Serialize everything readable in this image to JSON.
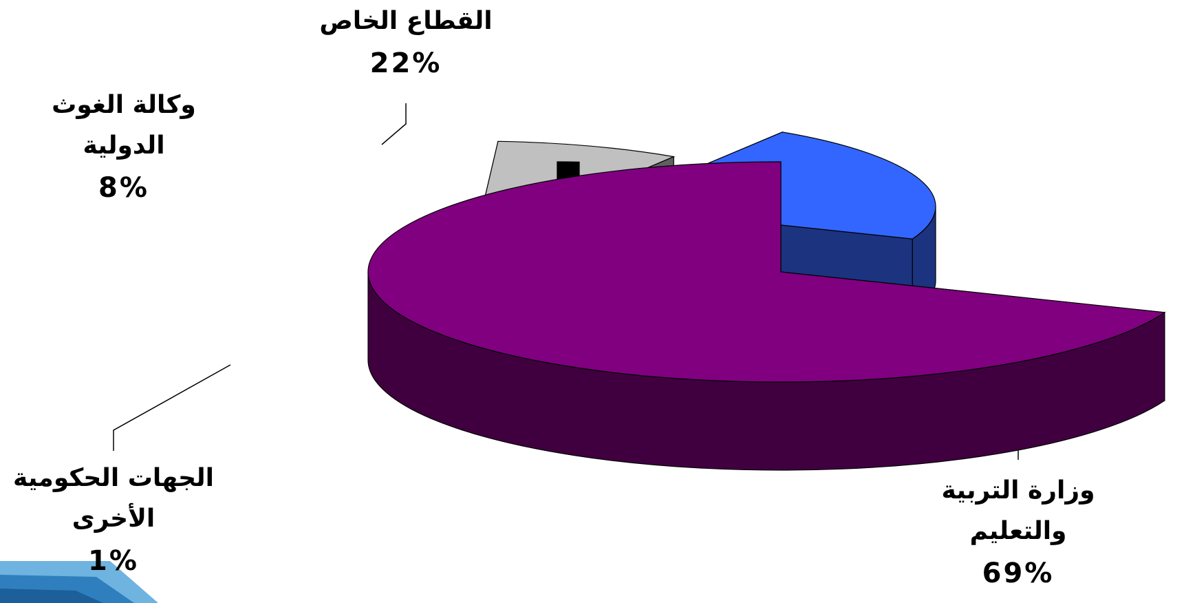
{
  "chart_data": {
    "type": "pie",
    "slices": [
      {
        "label": "وزارة التربية والتعليم",
        "label_lines": [
          "وزارة التربية",
          "والتعليم"
        ],
        "value": 69,
        "value_label": "69%",
        "top_color": "#800080",
        "side_color": "#400040"
      },
      {
        "label": "القطاع الخاص",
        "label_lines": [
          "القطاع الخاص"
        ],
        "value": 22,
        "value_label": "22%",
        "top_color": "#3366ff",
        "side_color": "#1c3380"
      },
      {
        "label": "وكالة الغوث الدولية",
        "label_lines": [
          "وكالة الغوث",
          "الدولية"
        ],
        "value": 8,
        "value_label": "8%",
        "top_color": "#c0c0c0",
        "side_color": "#606060"
      },
      {
        "label": "الجهات الحكومية الأخرى",
        "label_lines": [
          "الجهات الحكومية",
          "الأخرى"
        ],
        "value": 1,
        "value_label": "1%",
        "top_color": "#000000",
        "side_color": "#000000"
      }
    ]
  }
}
